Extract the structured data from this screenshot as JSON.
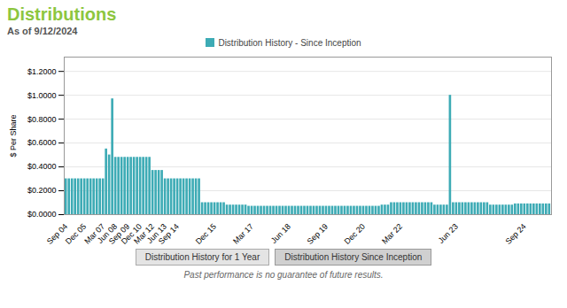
{
  "chart_data": {
    "type": "bar",
    "title": "Distributions",
    "subtitle": "As of 9/12/2024",
    "title_color": "#8dc63f",
    "ylabel": "$ Per Share",
    "categories": [
      "Sep 04",
      null,
      null,
      null,
      null,
      null,
      "Dec 05",
      null,
      null,
      null,
      null,
      null,
      "Mar 07",
      null,
      null,
      null,
      "Jun 08",
      null,
      null,
      null,
      "Sep 09",
      null,
      null,
      null,
      "Dec 10",
      null,
      null,
      null,
      "Mar 12",
      null,
      null,
      null,
      "Jun 13",
      null,
      null,
      null,
      "Sep 14",
      null,
      null,
      null,
      null,
      null,
      null,
      null,
      null,
      null,
      null,
      null,
      "Dec 15",
      null,
      null,
      null,
      null,
      null,
      null,
      null,
      null,
      null,
      null,
      null,
      "Mar 17",
      null,
      null,
      null,
      null,
      null,
      null,
      null,
      null,
      null,
      null,
      null,
      "Jun 18",
      null,
      null,
      null,
      null,
      null,
      null,
      null,
      null,
      null,
      null,
      null,
      "Sep 19",
      null,
      null,
      null,
      null,
      null,
      null,
      null,
      null,
      null,
      null,
      null,
      "Dec 20",
      null,
      null,
      null,
      null,
      null,
      null,
      null,
      null,
      null,
      null,
      null,
      "Mar 22",
      null,
      null,
      null,
      null,
      null,
      null,
      null,
      null,
      null,
      null,
      null,
      null,
      null,
      null,
      null,
      null,
      null,
      "Jun 23",
      null,
      null,
      null,
      null,
      null,
      null,
      null,
      null,
      null,
      null,
      null,
      null,
      null,
      null,
      null,
      null,
      null,
      null,
      null,
      null,
      null,
      "Sep 24",
      null,
      null,
      null,
      null,
      null,
      null,
      null,
      null
    ],
    "series": [
      {
        "name": "Distribution History - Since Inception",
        "color": "#3DABB5",
        "values": [
          0.3,
          0.3,
          0.3,
          0.3,
          0.3,
          0.3,
          0.3,
          0.3,
          0.3,
          0.3,
          0.3,
          0.3,
          0.3,
          0.55,
          0.5,
          0.97,
          0.48,
          0.48,
          0.48,
          0.48,
          0.48,
          0.48,
          0.48,
          0.48,
          0.48,
          0.48,
          0.48,
          0.48,
          0.37,
          0.37,
          0.37,
          0.37,
          0.3,
          0.3,
          0.3,
          0.3,
          0.3,
          0.3,
          0.3,
          0.3,
          0.3,
          0.3,
          0.3,
          0.3,
          0.1,
          0.1,
          0.1,
          0.1,
          0.1,
          0.1,
          0.1,
          0.1,
          0.08,
          0.08,
          0.08,
          0.08,
          0.08,
          0.08,
          0.08,
          0.07,
          0.07,
          0.07,
          0.07,
          0.07,
          0.07,
          0.07,
          0.07,
          0.07,
          0.07,
          0.07,
          0.07,
          0.07,
          0.07,
          0.07,
          0.07,
          0.07,
          0.07,
          0.07,
          0.07,
          0.07,
          0.07,
          0.07,
          0.07,
          0.07,
          0.07,
          0.07,
          0.07,
          0.07,
          0.07,
          0.07,
          0.07,
          0.07,
          0.07,
          0.07,
          0.07,
          0.07,
          0.07,
          0.07,
          0.07,
          0.07,
          0.07,
          0.07,
          0.08,
          0.08,
          0.08,
          0.1,
          0.1,
          0.1,
          0.1,
          0.1,
          0.1,
          0.1,
          0.1,
          0.1,
          0.1,
          0.1,
          0.1,
          0.1,
          0.1,
          0.08,
          0.08,
          0.08,
          0.08,
          0.08,
          1.0,
          0.1,
          0.1,
          0.1,
          0.1,
          0.1,
          0.1,
          0.1,
          0.1,
          0.1,
          0.1,
          0.1,
          0.1,
          0.08,
          0.08,
          0.08,
          0.08,
          0.08,
          0.08,
          0.08,
          0.08,
          0.09,
          0.09,
          0.09,
          0.09,
          0.09,
          0.09,
          0.09,
          0.09,
          0.09,
          0.09,
          0.09,
          0.09
        ]
      }
    ],
    "ylim": [
      0,
      1.32
    ],
    "yticks": [
      {
        "value": 0.0,
        "label": "$0.0000"
      },
      {
        "value": 0.2,
        "label": "$0.2000"
      },
      {
        "value": 0.4,
        "label": "$0.4000"
      },
      {
        "value": 0.6,
        "label": "$0.6000"
      },
      {
        "value": 0.8,
        "label": "$0.8000"
      },
      {
        "value": 1.0,
        "label": "$1.0000"
      },
      {
        "value": 1.2,
        "label": "$1.2000"
      }
    ],
    "grid": true,
    "legend": "upper center",
    "buttons": [
      "Distribution History for 1 Year",
      "Distribution History Since Inception"
    ],
    "footer": "Past performance is no guarantee of future results."
  }
}
